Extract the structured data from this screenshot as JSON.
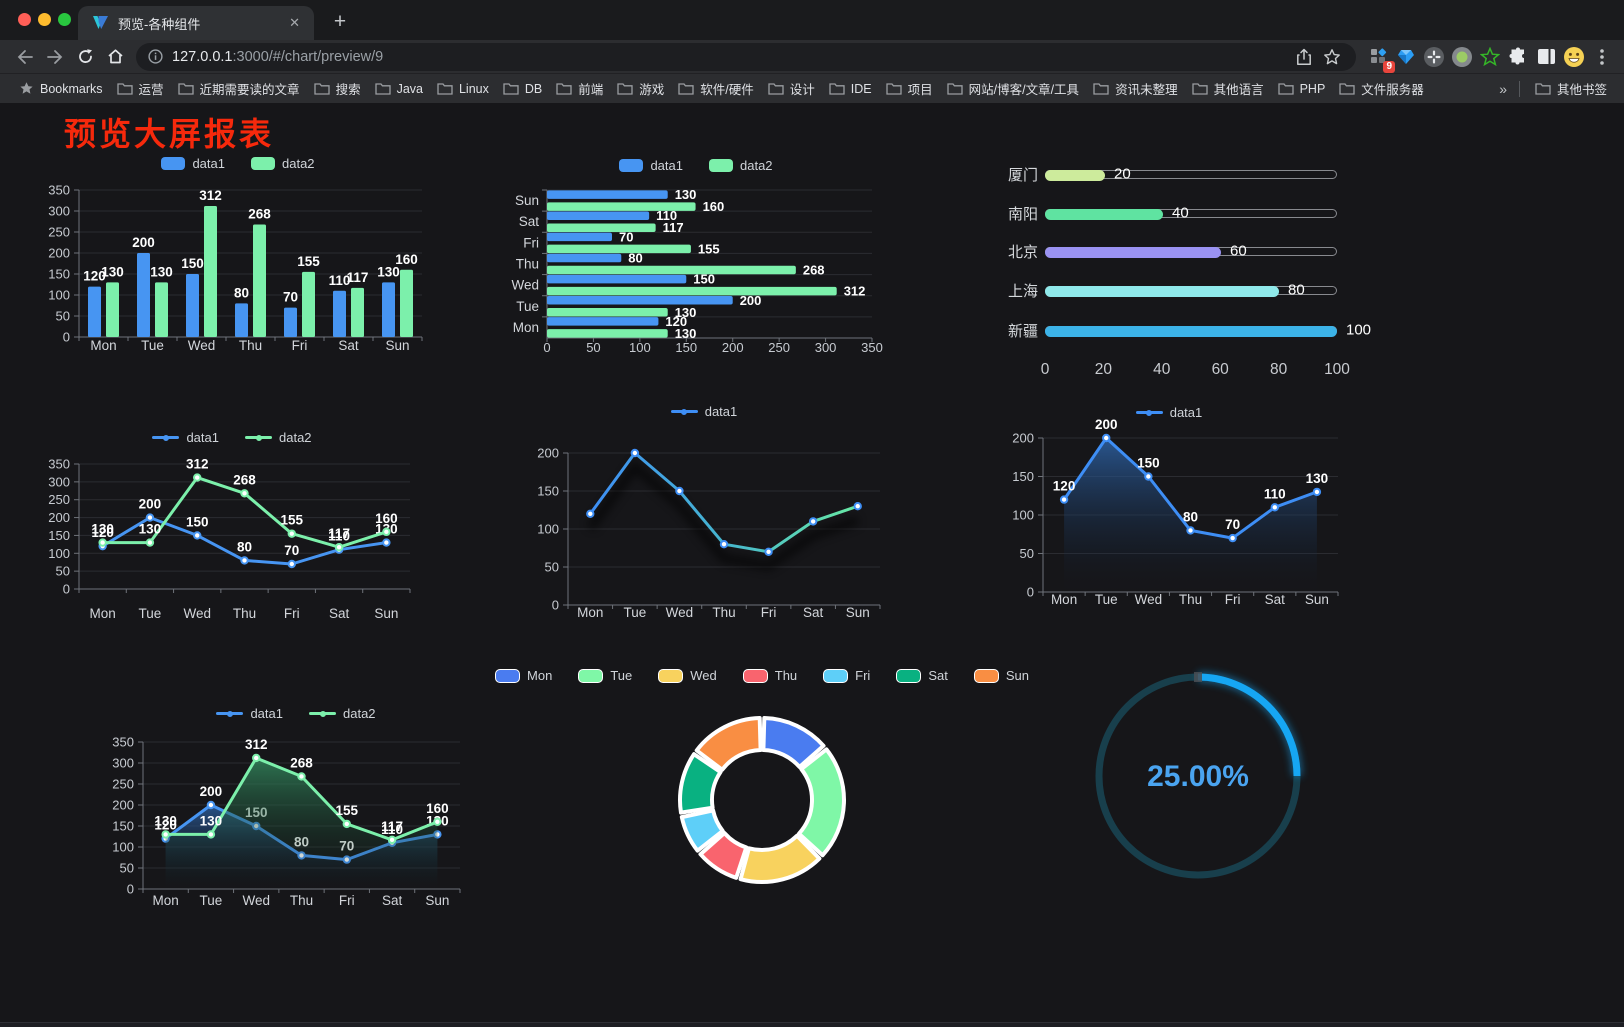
{
  "browser": {
    "tab": {
      "title": "预览-各种组件",
      "close_glyph": "✕",
      "new_tab_glyph": "+"
    },
    "address": {
      "host": "127.0.0.1",
      "path": ":3000/#/chart/preview/9"
    },
    "extensions_badge": "9",
    "bookmarks": {
      "label": "Bookmarks",
      "folders": [
        "运营",
        "近期需要读的文章",
        "搜索",
        "Java",
        "Linux",
        "DB",
        "前端",
        "游戏",
        "软件/硬件",
        "设计",
        "IDE",
        "项目",
        "网站/博客/文章/工具",
        "资讯未整理",
        "其他语言",
        "PHP",
        "文件服务器"
      ],
      "overflow_glyph": "»",
      "other_label": "其他书签"
    }
  },
  "page": {
    "heading": "预览大屏报表"
  },
  "chart_data": [
    {
      "id": "grouped-bar",
      "type": "bar",
      "categories": [
        "Mon",
        "Tue",
        "Wed",
        "Thu",
        "Fri",
        "Sat",
        "Sun"
      ],
      "series": [
        {
          "name": "data1",
          "color": "#4795f2",
          "values": [
            120,
            200,
            150,
            80,
            70,
            110,
            130
          ]
        },
        {
          "name": "data2",
          "color": "#7cf0ab",
          "values": [
            130,
            130,
            312,
            268,
            155,
            117,
            160
          ]
        }
      ],
      "ylim": [
        0,
        350
      ],
      "yticks": [
        0,
        50,
        100,
        150,
        200,
        250,
        300,
        350
      ],
      "legend_style": "rect",
      "value_labels": true,
      "grid": true,
      "legend_position": "top"
    },
    {
      "id": "horizontal-bar",
      "type": "hbar",
      "categories": [
        "Mon",
        "Tue",
        "Wed",
        "Thu",
        "Fri",
        "Sat",
        "Sun"
      ],
      "rows_top_to_bottom": [
        "Sun",
        "Sat",
        "Fri",
        "Thu",
        "Wed",
        "Tue",
        "Mon"
      ],
      "series": [
        {
          "name": "data1",
          "color": "#4795f2",
          "values": [
            120,
            200,
            150,
            80,
            70,
            110,
            130
          ]
        },
        {
          "name": "data2",
          "color": "#7cf0ab",
          "values": [
            130,
            130,
            312,
            268,
            155,
            117,
            160
          ]
        }
      ],
      "xlim": [
        0,
        350
      ],
      "xticks": [
        0,
        50,
        100,
        150,
        200,
        250,
        300,
        350
      ],
      "legend_style": "rect",
      "value_labels": true,
      "legend_position": "top"
    },
    {
      "id": "progress-bars",
      "type": "progress",
      "max": 100,
      "items": [
        {
          "label": "厦门",
          "value": 20,
          "color": "#cdeb9c"
        },
        {
          "label": "南阳",
          "value": 40,
          "color": "#5fe3a1"
        },
        {
          "label": "北京",
          "value": 60,
          "color": "#9a92f2"
        },
        {
          "label": "上海",
          "value": 80,
          "color": "#8fe9ea"
        },
        {
          "label": "新疆",
          "value": 100,
          "color": "#3cb3e8"
        }
      ],
      "axis_ticks": [
        0,
        20,
        40,
        60,
        80,
        100
      ]
    },
    {
      "id": "line-two-series",
      "type": "line",
      "categories": [
        "Mon",
        "Tue",
        "Wed",
        "Thu",
        "Fri",
        "Sat",
        "Sun"
      ],
      "series": [
        {
          "name": "data1",
          "color": "#4795f2",
          "values": [
            120,
            200,
            150,
            80,
            70,
            110,
            130
          ]
        },
        {
          "name": "data2",
          "color": "#7cf0ab",
          "values": [
            130,
            130,
            312,
            268,
            155,
            117,
            160
          ]
        }
      ],
      "ylim": [
        0,
        350
      ],
      "yticks": [
        0,
        50,
        100,
        150,
        200,
        250,
        300,
        350
      ],
      "legend_style": "dot",
      "value_labels": true,
      "markers": true,
      "legend_position": "top"
    },
    {
      "id": "gradient-line",
      "type": "line",
      "categories": [
        "Mon",
        "Tue",
        "Wed",
        "Thu",
        "Fri",
        "Sat",
        "Sun"
      ],
      "series": [
        {
          "name": "data1",
          "color": "#3e8ef5",
          "marker_color": "#3e8ef5",
          "color_gradient": [
            "#3e8ef5",
            "#46b6cf",
            "#68e9a4"
          ],
          "values": [
            120,
            200,
            150,
            80,
            70,
            110,
            130
          ]
        }
      ],
      "ylim": [
        0,
        200
      ],
      "yticks": [
        0,
        50,
        100,
        150,
        200
      ],
      "legend_style": "dot",
      "value_labels": false,
      "markers": true,
      "shadow": true,
      "legend_position": "top"
    },
    {
      "id": "area-line",
      "type": "line",
      "categories": [
        "Mon",
        "Tue",
        "Wed",
        "Thu",
        "Fri",
        "Sat",
        "Sun"
      ],
      "series": [
        {
          "name": "data1",
          "color": "#3e8ef5",
          "area": true,
          "area_colors": [
            "rgba(45,98,165,0.85)",
            "rgba(15,25,40,0)"
          ],
          "values": [
            120,
            200,
            150,
            80,
            70,
            110,
            130
          ]
        }
      ],
      "ylim": [
        0,
        200
      ],
      "yticks": [
        0,
        50,
        100,
        150,
        200
      ],
      "legend_style": "dot",
      "value_labels": true,
      "markers": true,
      "legend_position": "top"
    },
    {
      "id": "two-area-lines",
      "type": "line",
      "categories": [
        "Mon",
        "Tue",
        "Wed",
        "Thu",
        "Fri",
        "Sat",
        "Sun"
      ],
      "series": [
        {
          "name": "data1",
          "color": "#4795f2",
          "area": true,
          "area_colors": [
            "rgba(45,98,165,0.8)",
            "rgba(15,25,40,0)"
          ],
          "values": [
            120,
            200,
            150,
            80,
            70,
            110,
            130
          ]
        },
        {
          "name": "data2",
          "color": "#7cf0ab",
          "area": true,
          "area_colors": [
            "rgba(52,140,96,0.8)",
            "rgba(12,30,22,0)"
          ],
          "values": [
            130,
            130,
            312,
            268,
            155,
            117,
            160
          ]
        }
      ],
      "ylim": [
        0,
        350
      ],
      "yticks": [
        0,
        50,
        100,
        150,
        200,
        250,
        300,
        350
      ],
      "legend_style": "dot",
      "value_labels": true,
      "markers": true,
      "legend_position": "top"
    },
    {
      "id": "donut",
      "type": "pie",
      "legend_style": "round",
      "items": [
        {
          "label": "Mon",
          "value": 120,
          "color": "#4a7cf0"
        },
        {
          "label": "Tue",
          "value": 200,
          "color": "#7ff7a7"
        },
        {
          "label": "Wed",
          "value": 150,
          "color": "#f8d25e"
        },
        {
          "label": "Thu",
          "value": 80,
          "color": "#f9646e"
        },
        {
          "label": "Fri",
          "value": 70,
          "color": "#5ecff8"
        },
        {
          "label": "Sat",
          "value": 110,
          "color": "#09b181"
        },
        {
          "label": "Sun",
          "value": 130,
          "color": "#f98e43"
        }
      ],
      "border_color": "#ffffff",
      "legend_position": "top"
    },
    {
      "id": "gauge",
      "type": "gauge",
      "percent": 25,
      "display": "25.00%",
      "track_color": "#183f4c",
      "progress_color": "#16a6f3",
      "text_color": "#4aa4f0"
    }
  ]
}
